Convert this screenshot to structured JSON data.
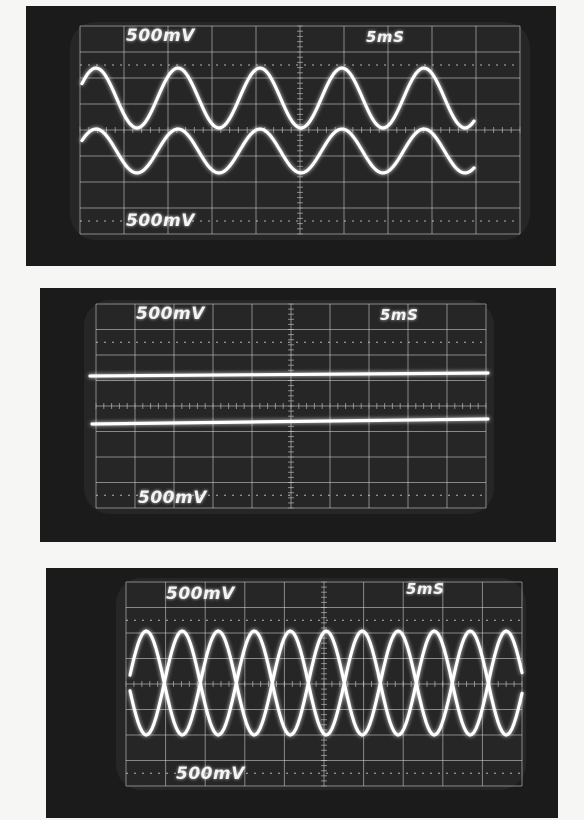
{
  "photos": [
    {
      "ch_top": "500mV",
      "timebase": "5mS",
      "ch_bottom": "500mV",
      "trace_mode": "two in-phase sine waves"
    },
    {
      "ch_top": "500mV",
      "timebase": "5mS",
      "ch_bottom": "500mV",
      "trace_mode": "two flat lines"
    },
    {
      "ch_top": "500mV",
      "timebase": "5mS",
      "ch_bottom": "500mV",
      "trace_mode": "two inverted sine waves"
    }
  ],
  "colors": {
    "trace": "#ffffff",
    "graticule": "#d8d8d8",
    "screen": "#262626",
    "photo_bg": "#161616",
    "paper": "#f6f6f4"
  }
}
